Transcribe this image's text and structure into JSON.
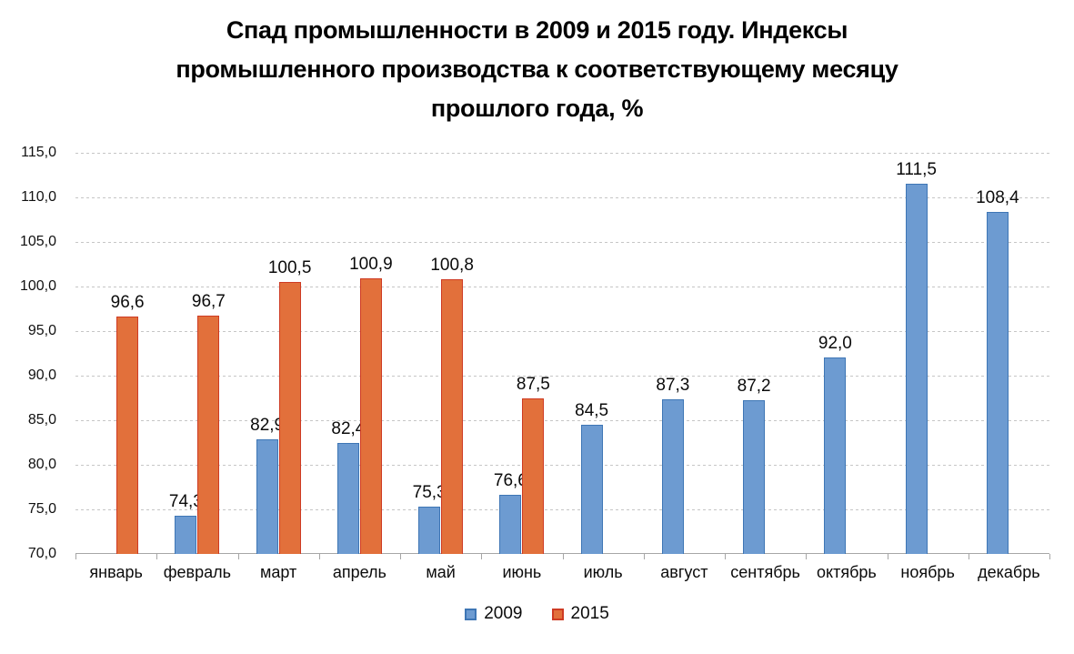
{
  "title": {
    "lines": [
      "Спад промышленности в 2009 и 2015 году. Индексы",
      "промышленного производства к соответствующему месяцу",
      "прошлого года, %"
    ]
  },
  "chart_data": {
    "type": "bar",
    "title": "Спад промышленности в 2009 и 2015 году. Индексы промышленного производства к соответствующему месяцу прошлого года, %",
    "categories": [
      "январь",
      "февраль",
      "март",
      "апрель",
      "май",
      "июнь",
      "июль",
      "август",
      "сентябрь",
      "октябрь",
      "ноябрь",
      "декабрь"
    ],
    "series": [
      {
        "name": "2009",
        "color": "#6D9BD1",
        "border_color": "#3E76B5",
        "values": [
          null,
          74.3,
          82.9,
          82.4,
          75.3,
          76.6,
          84.5,
          87.3,
          87.2,
          92.0,
          111.5,
          108.4
        ],
        "labels": [
          "",
          "74,3",
          "82,9",
          "82,4",
          "75,3",
          "76,6",
          "84,5",
          "87,3",
          "87,2",
          "92,0",
          "111,5",
          "108,4"
        ]
      },
      {
        "name": "2015",
        "color": "#E2703B",
        "border_color": "#CE3B23",
        "values": [
          96.6,
          96.7,
          100.5,
          100.9,
          100.8,
          87.5,
          null,
          null,
          null,
          null,
          null,
          null
        ],
        "labels": [
          "96,6",
          "96,7",
          "100,5",
          "100,9",
          "100,8",
          "87,5",
          "",
          "",
          "",
          "",
          "",
          ""
        ]
      }
    ],
    "y_axis": {
      "min": 70,
      "max": 115,
      "step": 5,
      "tick_labels": [
        "70,0",
        "75,0",
        "80,0",
        "85,0",
        "90,0",
        "95,0",
        "100,0",
        "105,0",
        "110,0",
        "115,0"
      ]
    },
    "grid": true,
    "legend_position": "bottom",
    "ylabel": "",
    "xlabel": ""
  }
}
